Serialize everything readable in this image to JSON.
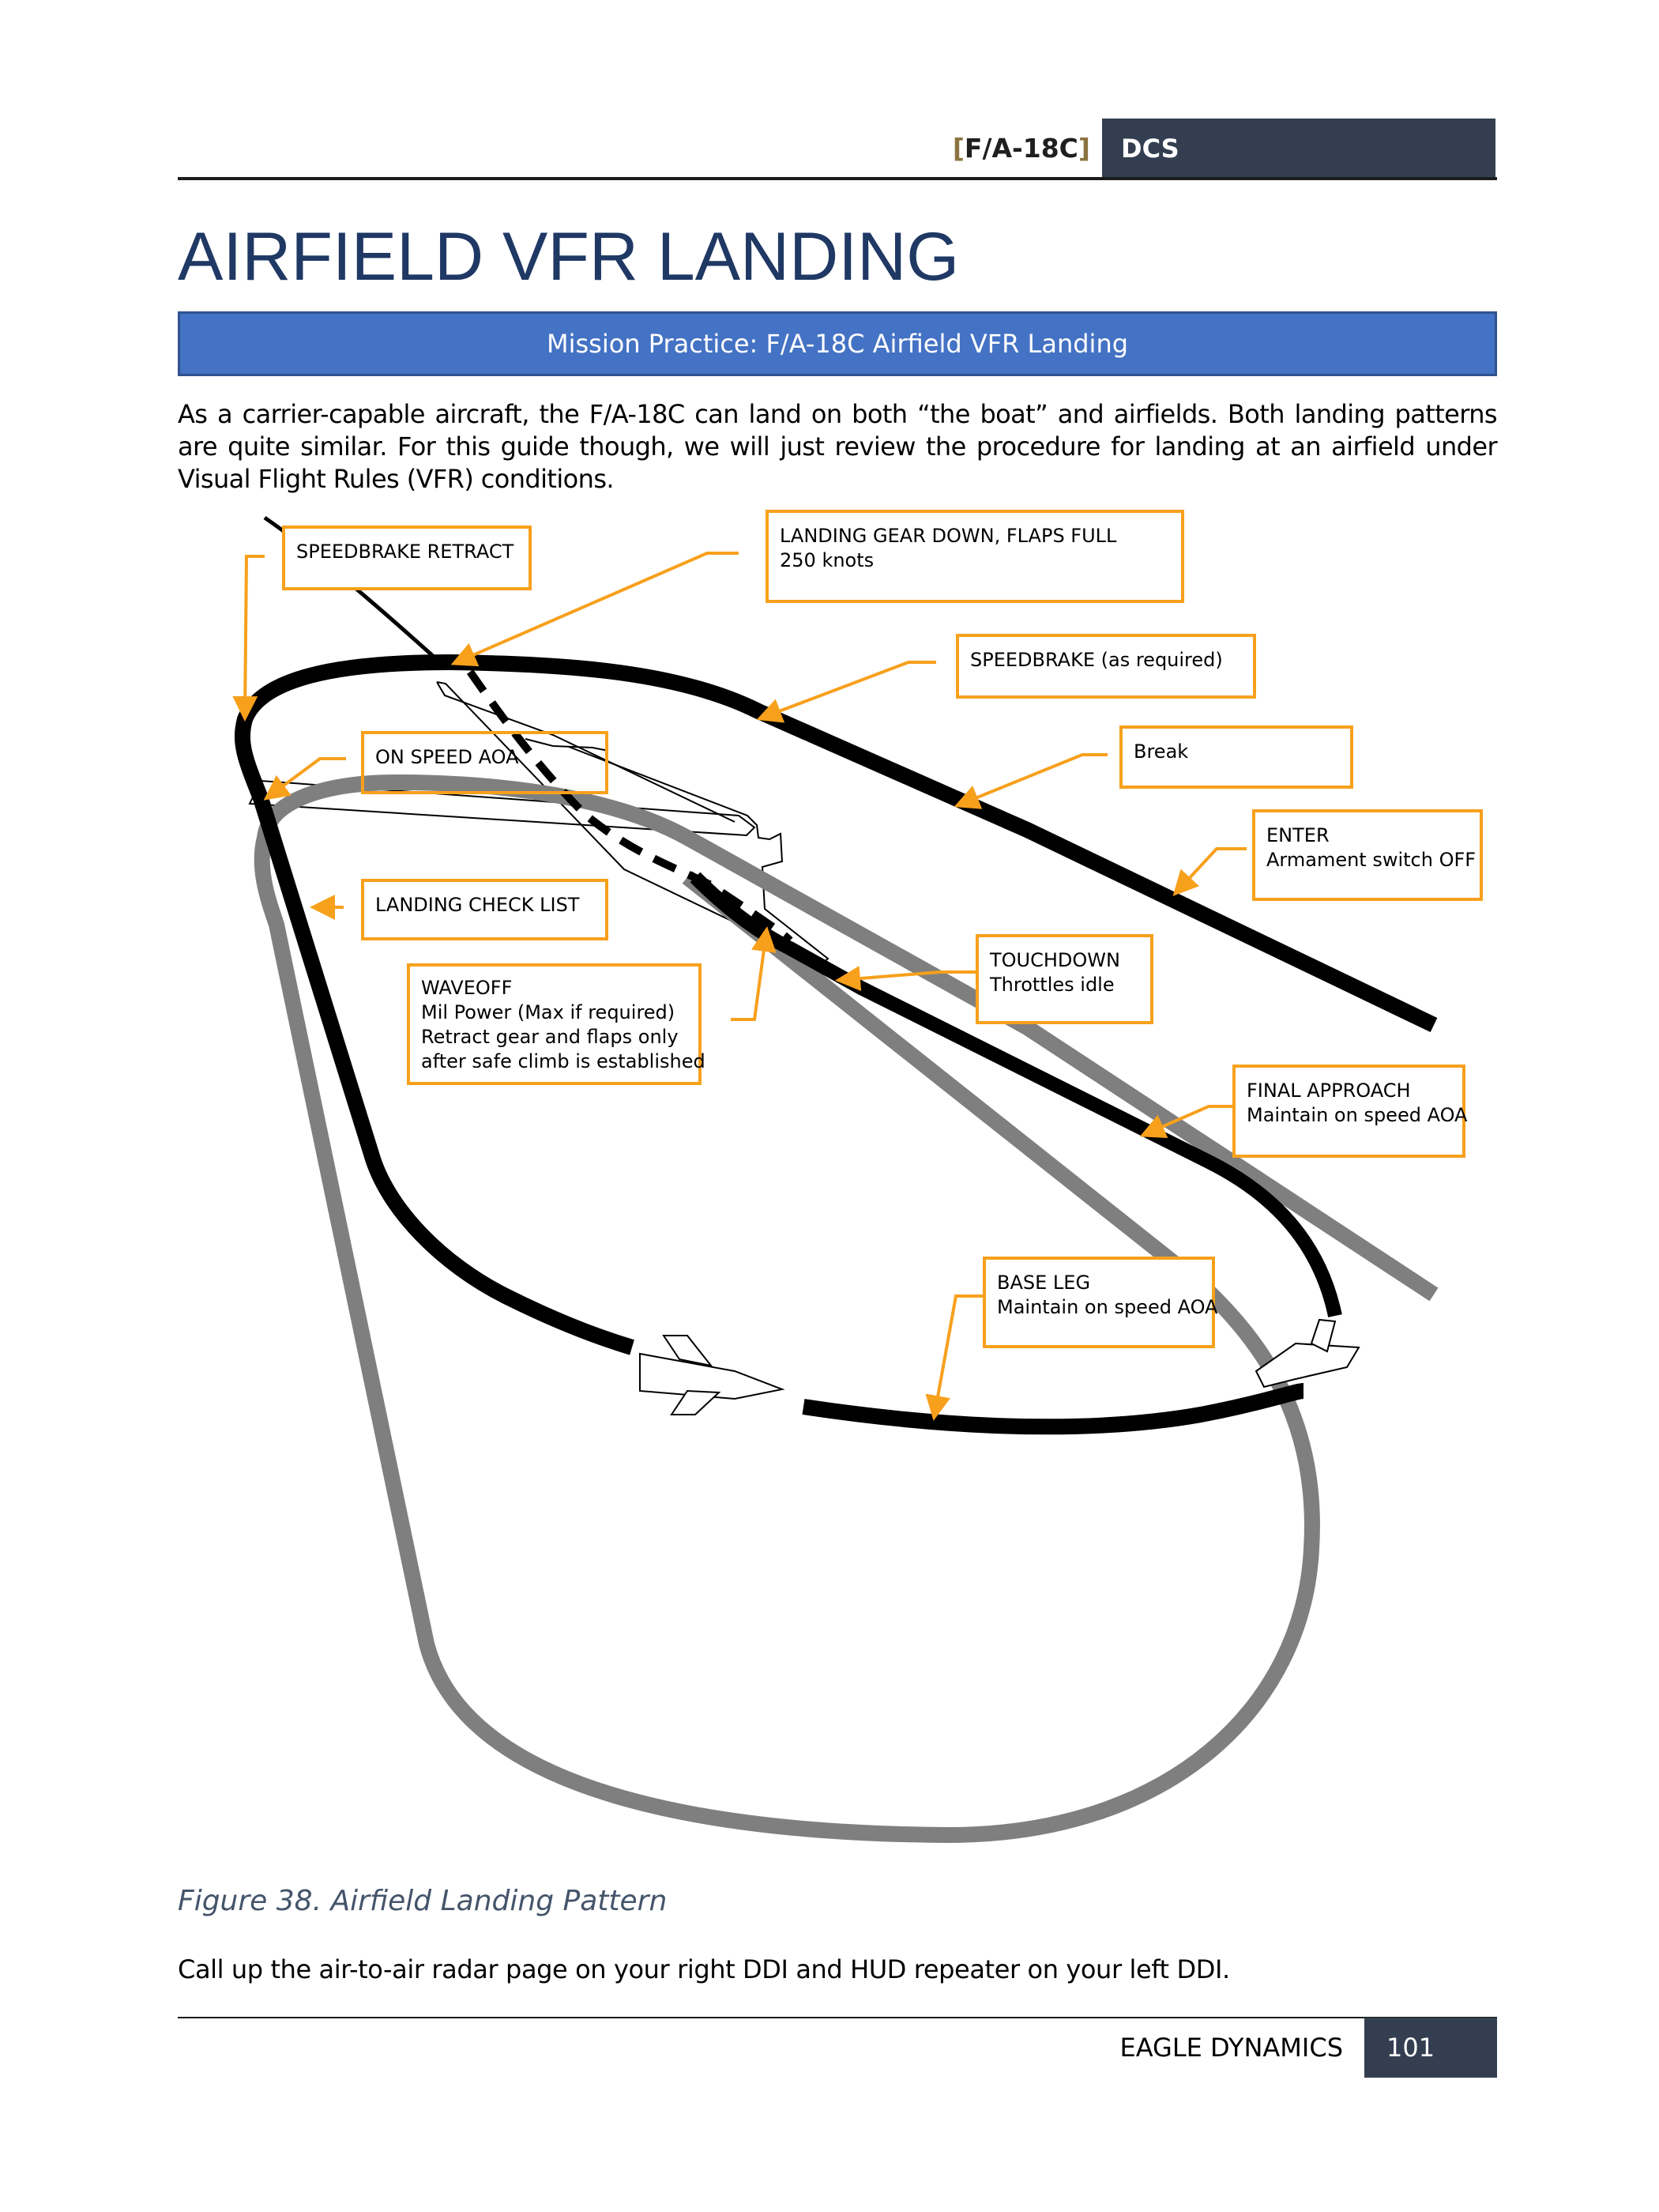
{
  "header": {
    "bracket_open": "[",
    "model": "F/A-18C",
    "bracket_close": "]",
    "tab": "DCS"
  },
  "title": "AIRFIELD VFR LANDING",
  "mission_banner": "Mission Practice: F/A-18C Airfield VFR Landing",
  "intro": "As a carrier-capable aircraft, the F/A-18C can land on both “the boat” and airfields. Both landing patterns are quite similar. For this guide though, we will just review the procedure for landing at an airfield under Visual Flight Rules (VFR) conditions.",
  "diagram": {
    "callouts": {
      "speedbrake_retract": [
        "SPEEDBRAKE RETRACT"
      ],
      "gear_flaps": [
        "LANDING GEAR DOWN, FLAPS FULL",
        "250 knots"
      ],
      "speedbrake_required": [
        "SPEEDBRAKE (as required)"
      ],
      "on_speed": [
        "ON SPEED AOA"
      ],
      "break": [
        "Break"
      ],
      "enter": [
        "ENTER",
        "Armament switch OFF"
      ],
      "checklist": [
        "LANDING CHECK LIST"
      ],
      "touchdown": [
        "TOUCHDOWN",
        "Throttles idle"
      ],
      "waveoff": [
        "WAVEOFF",
        "Mil Power (Max if required)",
        "Retract gear and flaps only",
        "after safe climb is established"
      ],
      "final": [
        "FINAL APPROACH",
        "Maintain on speed AOA"
      ],
      "base": [
        "BASE LEG",
        "Maintain on speed AOA"
      ]
    },
    "colors": {
      "callout_border": "#f7a01c",
      "pattern_track": "#000000",
      "waveoff_track": "#7f7f7f"
    }
  },
  "figure_caption": "Figure 38. Airfield Landing Pattern",
  "body_text": "Call up the air-to-air radar page on your right DDI and HUD repeater on your left DDI.",
  "footer": {
    "company": "EAGLE DYNAMICS",
    "page": "101"
  }
}
